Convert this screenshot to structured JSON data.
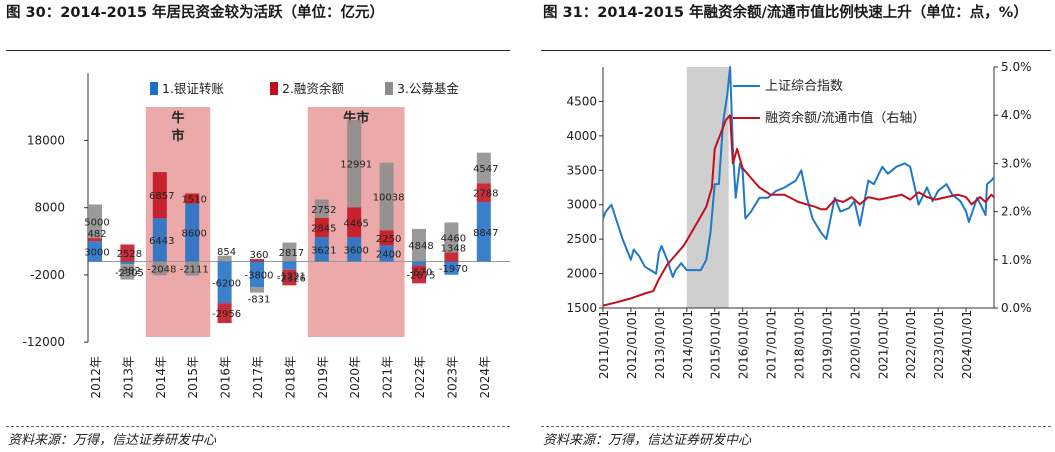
{
  "left": {
    "title": "图 30：2014-2015 年居民资金较为活跃（单位：亿元）",
    "source": "资料来源：万得，信达证券研发中心"
  },
  "right": {
    "title": "图 31：2014-2015 年融资余额/流通市值比例快速上升（单位：点，%）",
    "source": "资料来源：万得，信达证券研发中心"
  },
  "chart_data": [
    {
      "type": "bar",
      "stacked": true,
      "categories": [
        "2012年",
        "2013年",
        "2014年",
        "2015年",
        "2016年",
        "2017年",
        "2018年",
        "2019年",
        "2020年",
        "2021年",
        "2022年",
        "2023年",
        "2024年"
      ],
      "series": [
        {
          "name": "1.银证转账",
          "color": "#1f6fc5",
          "values": [
            3000,
            -382,
            6443,
            8600,
            -6200,
            -3800,
            -1221,
            3621,
            3600,
            2400,
            -570,
            -1970,
            8847
          ]
        },
        {
          "name": "2.融资余额",
          "color": "#c0101e",
          "values": [
            482,
            2528,
            6857,
            1510,
            -2956,
            360,
            -2326,
            2845,
            4465,
            2250,
            -2675,
            1348,
            2788
          ]
        },
        {
          "name": "3.公募基金",
          "color": "#8c8c8c",
          "values": [
            5000,
            -2305,
            -2048,
            -2111,
            854,
            -831,
            2817,
            2752,
            12991,
            10038,
            4848,
            4460,
            4547
          ]
        }
      ],
      "ylim": [
        -12000,
        28000
      ],
      "yticks": [
        -12000,
        -2000,
        8000,
        18000
      ],
      "annotations": [
        {
          "text": "牛市",
          "x_range": [
            "2014年",
            "2015年"
          ]
        },
        {
          "text": "牛市",
          "x_range": [
            "2019年",
            "2021年"
          ]
        }
      ],
      "legend": "top",
      "grid": false
    },
    {
      "type": "line",
      "x_ticks": [
        "2011/01/01",
        "2012/01/01",
        "2013/01/01",
        "2014/01/01",
        "2015/01/01",
        "2016/01/01",
        "2017/01/01",
        "2018/01/01",
        "2019/01/01",
        "2020/01/01",
        "2021/01/01",
        "2022/01/01",
        "2023/01/01",
        "2024/01/01"
      ],
      "x_range": [
        "2011/01/01",
        "2025/01/01"
      ],
      "ylim_left": [
        1500,
        5000
      ],
      "yticks_left": [
        1500,
        2000,
        2500,
        3000,
        3500,
        4000,
        4500
      ],
      "ylim_right": [
        0,
        5
      ],
      "yticks_right": [
        "0.0%",
        "1.0%",
        "2.0%",
        "3.0%",
        "4.0%",
        "5.0%"
      ],
      "shaded_range": [
        "2014/01/01",
        "2015/07/01"
      ],
      "legend": "top-center",
      "grid": false,
      "series": [
        {
          "name": "上证综合指数",
          "axis": "left",
          "color": "#1f78c8",
          "x": [
            2011.0,
            2011.1,
            2011.3,
            2011.5,
            2011.7,
            2011.9,
            2012.0,
            2012.1,
            2012.3,
            2012.5,
            2012.7,
            2012.9,
            2013.0,
            2013.1,
            2013.3,
            2013.5,
            2013.6,
            2013.8,
            2014.0,
            2014.3,
            2014.5,
            2014.7,
            2014.85,
            2015.0,
            2015.15,
            2015.3,
            2015.45,
            2015.55,
            2015.65,
            2015.75,
            2015.9,
            2016.0,
            2016.1,
            2016.3,
            2016.6,
            2016.9,
            2017.2,
            2017.5,
            2017.9,
            2018.1,
            2018.3,
            2018.5,
            2018.8,
            2019.0,
            2019.3,
            2019.5,
            2019.8,
            2020.0,
            2020.2,
            2020.5,
            2020.7,
            2021.0,
            2021.2,
            2021.5,
            2021.8,
            2022.0,
            2022.3,
            2022.6,
            2022.8,
            2023.0,
            2023.3,
            2023.5,
            2023.8,
            2024.0,
            2024.1,
            2024.4,
            2024.7,
            2024.75,
            2024.9,
            2025.0
          ],
          "values": [
            2800,
            2900,
            3000,
            2750,
            2500,
            2300,
            2200,
            2350,
            2250,
            2100,
            2050,
            2000,
            2300,
            2400,
            2200,
            1950,
            2050,
            2150,
            2050,
            2050,
            2050,
            2200,
            2600,
            3300,
            3300,
            4200,
            4600,
            5000,
            3800,
            3100,
            3600,
            3500,
            2800,
            2900,
            3100,
            3100,
            3200,
            3250,
            3350,
            3500,
            3100,
            2800,
            2600,
            2500,
            3100,
            2900,
            2950,
            3050,
            2700,
            3350,
            3300,
            3550,
            3450,
            3550,
            3600,
            3550,
            3000,
            3250,
            3050,
            3200,
            3300,
            3150,
            3050,
            2900,
            2750,
            3100,
            2850,
            3300,
            3350,
            3400
          ]
        },
        {
          "name": "融资余额/流通市值（右轴）",
          "axis": "right",
          "color": "#c0101e",
          "x": [
            2011.0,
            2011.5,
            2012.0,
            2012.5,
            2012.8,
            2013.0,
            2013.3,
            2013.6,
            2013.9,
            2014.2,
            2014.5,
            2014.7,
            2014.9,
            2015.0,
            2015.2,
            2015.4,
            2015.55,
            2015.65,
            2015.8,
            2016.0,
            2016.3,
            2016.6,
            2017.0,
            2017.5,
            2018.0,
            2018.3,
            2018.6,
            2018.8,
            2019.0,
            2019.3,
            2019.6,
            2019.9,
            2020.2,
            2020.5,
            2020.9,
            2021.3,
            2021.7,
            2022.0,
            2022.3,
            2022.6,
            2022.9,
            2023.3,
            2023.7,
            2024.0,
            2024.2,
            2024.5,
            2024.7,
            2024.9,
            2025.0
          ],
          "values": [
            0.05,
            0.12,
            0.2,
            0.3,
            0.35,
            0.6,
            0.9,
            1.1,
            1.3,
            1.6,
            1.9,
            2.1,
            2.5,
            3.3,
            3.6,
            3.9,
            4.0,
            3.0,
            3.3,
            2.9,
            2.7,
            2.5,
            2.35,
            2.35,
            2.2,
            2.15,
            2.1,
            2.05,
            2.05,
            2.25,
            2.2,
            2.3,
            2.15,
            2.3,
            2.25,
            2.3,
            2.35,
            2.25,
            2.4,
            2.3,
            2.25,
            2.3,
            2.35,
            2.3,
            2.15,
            2.3,
            2.2,
            2.35,
            2.3
          ]
        }
      ]
    }
  ]
}
